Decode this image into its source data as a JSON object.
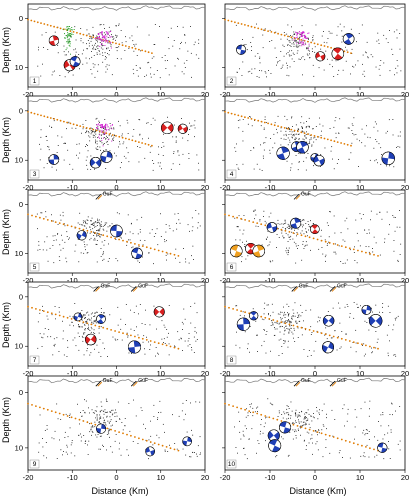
{
  "figure": {
    "ylabel": "Depth (Km)",
    "xlabel": "Distance (Km)",
    "x_ticks": [
      "-20",
      "-10",
      "0",
      "10",
      "20"
    ],
    "y_ticks": [
      "0",
      "10"
    ],
    "fault_label": "GuF"
  },
  "panels": [
    {
      "id": "1",
      "has_guf": false
    },
    {
      "id": "2",
      "has_guf": false
    },
    {
      "id": "3",
      "has_guf": false
    },
    {
      "id": "4",
      "has_guf": false
    },
    {
      "id": "5",
      "has_guf": true
    },
    {
      "id": "6",
      "has_guf": true
    },
    {
      "id": "7",
      "has_guf": true
    },
    {
      "id": "8",
      "has_guf": true
    },
    {
      "id": "9",
      "has_guf": true
    },
    {
      "id": "10",
      "has_guf": true
    }
  ],
  "colors": {
    "seismicity": "#222222",
    "slab_points": "#e07b00",
    "mech_blue": "#1f3fb5",
    "mech_red": "#d81f1f",
    "mech_orange": "#f0a020",
    "cluster_green": "#2aa02a",
    "cluster_magenta": "#d020d0",
    "topography": "#777777"
  }
}
